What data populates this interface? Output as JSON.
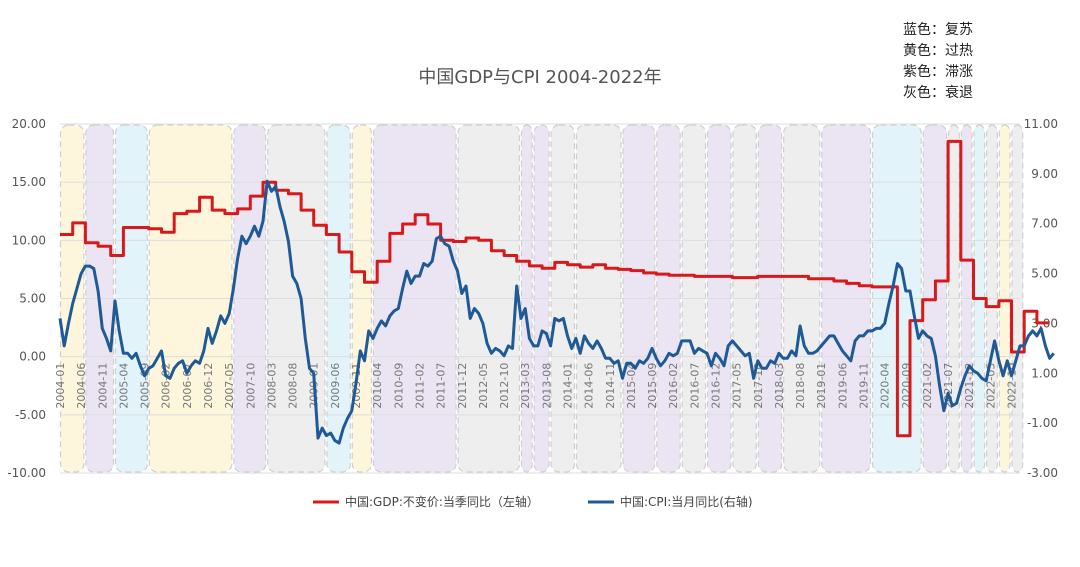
{
  "chart_data": {
    "type": "line",
    "title": "中国GDP与CPI 2004-2022年",
    "x_tick_labels": [
      "2004-01",
      "2004-06",
      "2004-11",
      "2005-04",
      "2005-09",
      "2006-02",
      "2006-07",
      "2006-12",
      "2007-05",
      "2007-10",
      "2008-03",
      "2008-08",
      "2009-01",
      "2009-06",
      "2009-11",
      "2010-04",
      "2010-09",
      "2011-02",
      "2011-07",
      "2011-12",
      "2012-05",
      "2012-10",
      "2013-03",
      "2013-08",
      "2014-01",
      "2014-06",
      "2014-11",
      "2015-04",
      "2015-09",
      "2016-02",
      "2016-07",
      "2016-12",
      "2017-05",
      "2017-10",
      "2018-03",
      "2018-08",
      "2019-01",
      "2019-06",
      "2019-11",
      "2020-04",
      "2020-09",
      "2021-02",
      "2021-07",
      "2021-12",
      "2022-05",
      "2022-10"
    ],
    "y_left": {
      "ticks": [
        "20.00",
        "15.00",
        "10.00",
        "5.00",
        "0.00",
        "-5.00",
        "-10.00"
      ],
      "range": [
        -10,
        20
      ]
    },
    "y_right": {
      "ticks": [
        "11.00",
        "9.00",
        "7.00",
        "5.00",
        "3.00",
        "1.00",
        "-1.00",
        "-3.00"
      ],
      "range": [
        -3,
        11
      ]
    },
    "legend": [
      {
        "label": "中国:GDP:不变价:当季同比（左轴）",
        "color": "#d7191c"
      },
      {
        "label": "中国:CPI:当月同比(右轴)",
        "color": "#1f5a96"
      }
    ],
    "regime_note": [
      "蓝色：复苏",
      "黄色：过热",
      "紫色：滞涨",
      "灰色：衰退"
    ],
    "regime_colors": {
      "blue": "#e2f3fa",
      "yellow": "#fdf6dc",
      "purple": "#ebe5f3",
      "gray": "#eeeeee"
    },
    "regimes": [
      {
        "from": "2004-01",
        "to": "2004-06",
        "phase": "yellow"
      },
      {
        "from": "2004-07",
        "to": "2005-01",
        "phase": "purple"
      },
      {
        "from": "2005-02",
        "to": "2005-09",
        "phase": "blue"
      },
      {
        "from": "2005-10",
        "to": "2007-05",
        "phase": "yellow"
      },
      {
        "from": "2007-06",
        "to": "2008-01",
        "phase": "purple"
      },
      {
        "from": "2008-02",
        "to": "2009-03",
        "phase": "gray"
      },
      {
        "from": "2009-04",
        "to": "2009-09",
        "phase": "blue"
      },
      {
        "from": "2009-10",
        "to": "2010-02",
        "phase": "yellow"
      },
      {
        "from": "2010-03",
        "to": "2011-10",
        "phase": "purple"
      },
      {
        "from": "2011-11",
        "to": "2013-01",
        "phase": "gray"
      },
      {
        "from": "2013-02",
        "to": "2013-04",
        "phase": "purple"
      },
      {
        "from": "2013-05",
        "to": "2013-08",
        "phase": "purple"
      },
      {
        "from": "2013-09",
        "to": "2014-02",
        "phase": "gray"
      },
      {
        "from": "2014-03",
        "to": "2015-01",
        "phase": "gray"
      },
      {
        "from": "2015-02",
        "to": "2015-09",
        "phase": "purple"
      },
      {
        "from": "2015-10",
        "to": "2016-03",
        "phase": "purple"
      },
      {
        "from": "2016-04",
        "to": "2016-09",
        "phase": "gray"
      },
      {
        "from": "2016-10",
        "to": "2017-03",
        "phase": "purple"
      },
      {
        "from": "2017-04",
        "to": "2017-09",
        "phase": "gray"
      },
      {
        "from": "2017-10",
        "to": "2018-03",
        "phase": "purple"
      },
      {
        "from": "2018-04",
        "to": "2018-12",
        "phase": "gray"
      },
      {
        "from": "2019-01",
        "to": "2019-12",
        "phase": "purple"
      },
      {
        "from": "2020-01",
        "to": "2020-12",
        "phase": "blue"
      },
      {
        "from": "2021-01",
        "to": "2021-06",
        "phase": "purple"
      },
      {
        "from": "2021-07",
        "to": "2021-09",
        "phase": "gray"
      },
      {
        "from": "2021-10",
        "to": "2021-12",
        "phase": "purple"
      },
      {
        "from": "2022-01",
        "to": "2022-03",
        "phase": "blue"
      },
      {
        "from": "2022-04",
        "to": "2022-06",
        "phase": "gray"
      },
      {
        "from": "2022-07",
        "to": "2022-09",
        "phase": "yellow"
      },
      {
        "from": "2022-10",
        "to": "2022-12",
        "phase": "gray"
      }
    ],
    "gdp_quarterly": {
      "start": "2004-01",
      "values": [
        10.5,
        11.5,
        9.8,
        9.5,
        8.7,
        11.1,
        11.1,
        11.0,
        10.7,
        12.3,
        12.5,
        13.7,
        12.6,
        12.3,
        12.7,
        13.8,
        15.0,
        14.3,
        14.0,
        12.6,
        11.3,
        10.5,
        9.0,
        7.3,
        6.4,
        8.2,
        10.6,
        11.4,
        12.2,
        11.4,
        10.0,
        9.9,
        10.2,
        10.0,
        9.1,
        8.7,
        8.2,
        7.8,
        7.6,
        8.1,
        7.9,
        7.7,
        7.9,
        7.6,
        7.5,
        7.4,
        7.2,
        7.1,
        7.0,
        7.0,
        6.9,
        6.9,
        6.9,
        6.8,
        6.8,
        6.9,
        6.9,
        6.9,
        6.9,
        6.7,
        6.7,
        6.5,
        6.3,
        6.1,
        6.0,
        6.0,
        -6.8,
        3.1,
        4.9,
        6.5,
        18.5,
        8.3,
        5.0,
        4.3,
        4.8,
        0.4,
        3.9,
        2.9
      ]
    },
    "cpi_monthly": {
      "start": "2004-01",
      "values": [
        3.2,
        2.1,
        3.0,
        3.8,
        4.4,
        5.0,
        5.3,
        5.3,
        5.2,
        4.3,
        2.8,
        2.4,
        1.9,
        3.9,
        2.7,
        1.8,
        1.8,
        1.6,
        1.8,
        1.3,
        0.9,
        1.2,
        1.3,
        1.6,
        1.9,
        0.9,
        0.8,
        1.2,
        1.4,
        1.5,
        1.0,
        1.3,
        1.5,
        1.4,
        1.9,
        2.8,
        2.2,
        2.7,
        3.3,
        3.0,
        3.4,
        4.4,
        5.6,
        6.5,
        6.2,
        6.5,
        6.9,
        6.5,
        7.1,
        8.7,
        8.3,
        8.5,
        7.7,
        7.1,
        6.3,
        4.9,
        4.6,
        4.0,
        2.4,
        1.2,
        1.0,
        -1.6,
        -1.2,
        -1.5,
        -1.4,
        -1.7,
        -1.8,
        -1.2,
        -0.8,
        -0.5,
        0.6,
        1.9,
        1.5,
        2.7,
        2.4,
        2.8,
        3.1,
        2.9,
        3.3,
        3.5,
        3.6,
        4.4,
        5.1,
        4.6,
        4.9,
        4.9,
        5.4,
        5.3,
        5.5,
        6.4,
        6.5,
        6.2,
        6.1,
        5.5,
        5.1,
        4.2,
        4.5,
        3.2,
        3.6,
        3.4,
        3.0,
        2.2,
        1.8,
        2.0,
        1.9,
        1.7,
        2.1,
        2.0,
        4.5,
        3.2,
        3.6,
        2.4,
        2.1,
        2.1,
        2.7,
        2.6,
        2.1,
        3.2,
        3.1,
        3.2,
        2.5,
        2.0,
        2.4,
        1.8,
        2.5,
        2.2,
        2.0,
        2.3,
        2.0,
        1.6,
        1.6,
        1.4,
        1.5,
        0.8,
        1.4,
        1.4,
        1.2,
        1.5,
        1.4,
        1.6,
        2.0,
        1.6,
        1.3,
        1.5,
        1.8,
        1.7,
        1.8,
        2.3,
        2.3,
        2.3,
        1.8,
        2.0,
        1.9,
        1.8,
        1.3,
        1.8,
        1.6,
        1.3,
        2.1,
        2.3,
        2.1,
        1.9,
        1.7,
        1.8,
        0.8,
        1.5,
        1.2,
        1.2,
        1.5,
        1.4,
        1.8,
        1.6,
        1.6,
        1.9,
        1.7,
        2.9,
        2.1,
        1.8,
        1.8,
        1.9,
        2.1,
        2.3,
        2.5,
        2.5,
        2.2,
        1.9,
        1.7,
        1.5,
        2.3,
        2.5,
        2.5,
        2.7,
        2.7,
        2.8,
        2.8,
        3.0,
        3.8,
        4.5,
        5.4,
        5.2,
        4.3,
        4.3,
        3.3,
        2.4,
        2.7,
        2.5,
        2.4,
        1.7,
        0.5,
        -0.5,
        0.2,
        -0.3,
        -0.2,
        0.4,
        0.9,
        1.3,
        1.1,
        1.0,
        0.8,
        0.7,
        1.5,
        2.3,
        1.5,
        0.9,
        1.5,
        0.9,
        1.5,
        2.1,
        2.1,
        2.5,
        2.7,
        2.5,
        2.8,
        2.1,
        1.6,
        1.8
      ]
    }
  }
}
